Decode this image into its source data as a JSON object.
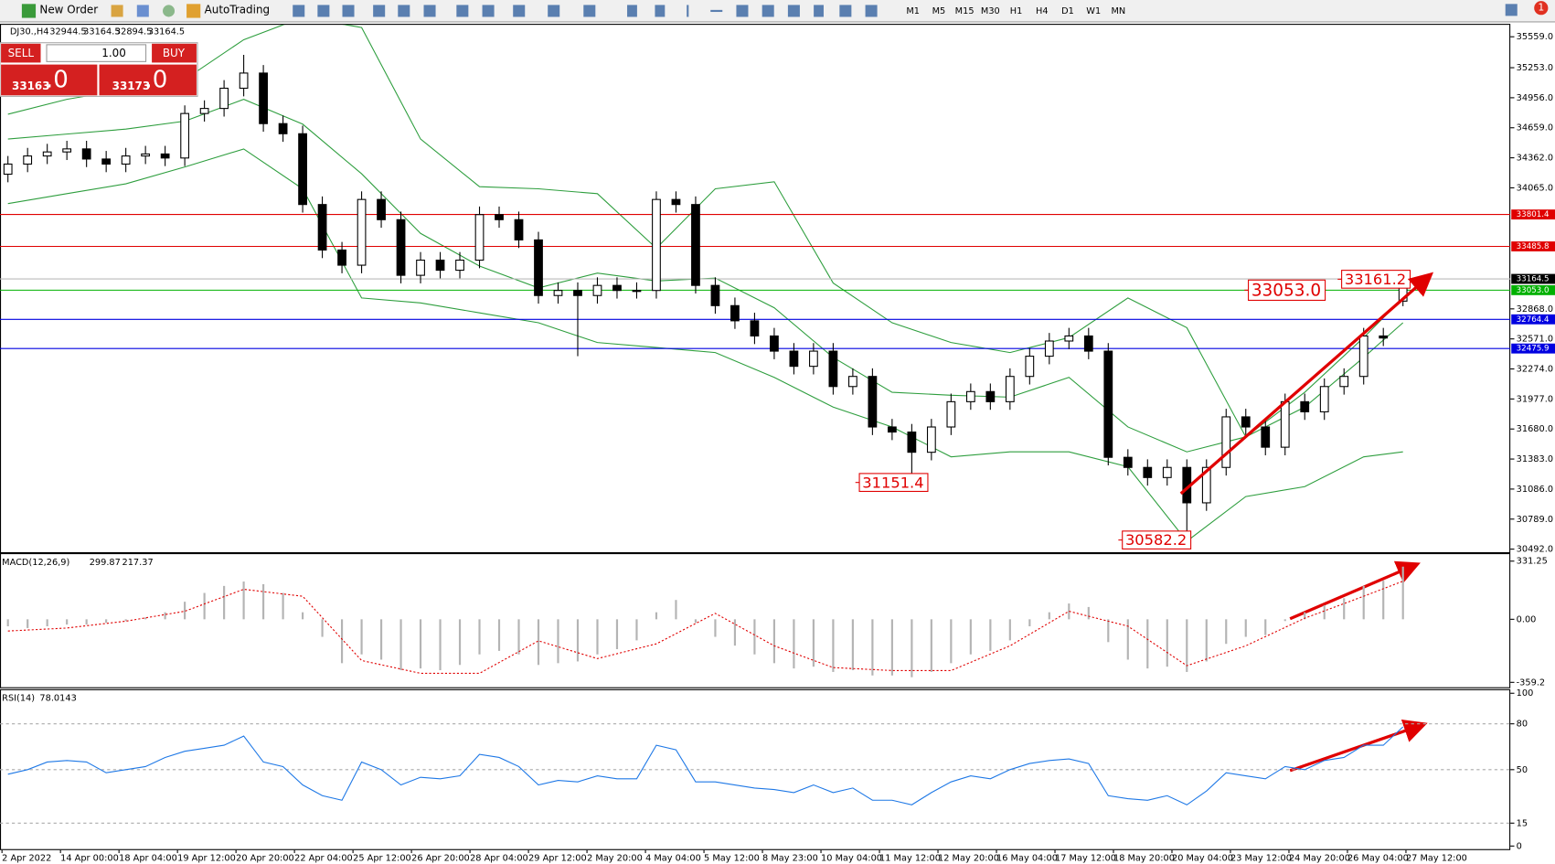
{
  "toolbar": {
    "new_order": "New Order",
    "autotrading": "AutoTrading",
    "timeframes": [
      "M1",
      "M5",
      "M15",
      "M30",
      "H1",
      "H4",
      "D1",
      "W1",
      "MN"
    ],
    "alerts": "1"
  },
  "trade_panel": {
    "sell": "SELL",
    "buy": "BUY",
    "lot": "1.00",
    "bid_main": "33163",
    "bid_pips": ".0",
    "ask_main": "33173",
    "ask_pips": ".0"
  },
  "chart_data": [
    {
      "type": "candlestick",
      "title": "DJ30.,H4",
      "open": [
        34200,
        34300,
        34380,
        34420,
        34450,
        34350,
        34300,
        34380,
        34400,
        34360,
        34800,
        34850,
        35050,
        35200,
        34700,
        34600,
        33900,
        33450,
        33300,
        33950,
        33750,
        33200,
        33350,
        33250,
        33350,
        33800,
        33750,
        33550,
        33000,
        33050,
        33000,
        33100,
        33050,
        33050,
        33950,
        33900,
        33100,
        32900,
        32750,
        32600,
        32450,
        32300,
        32450,
        32100,
        32200,
        31700,
        31650,
        31450,
        31700,
        31950,
        32050,
        31950,
        32200,
        32400,
        32550,
        32600,
        32450,
        31400,
        31300,
        31200,
        31300,
        30950,
        31300,
        31800,
        31700,
        31500,
        31950,
        31850,
        32100,
        32200,
        32600,
        32944.5
      ],
      "high": [
        34380,
        34460,
        34500,
        34530,
        34530,
        34430,
        34460,
        34480,
        34480,
        34880,
        34930,
        35130,
        35380,
        35280,
        34780,
        34680,
        33980,
        33530,
        34030,
        34030,
        33830,
        33430,
        33430,
        33430,
        33880,
        33880,
        33830,
        33630,
        33130,
        33130,
        33180,
        33180,
        33130,
        34030,
        34030,
        33980,
        33180,
        32980,
        32830,
        32680,
        32530,
        32530,
        32530,
        32280,
        32280,
        31780,
        31730,
        31780,
        32030,
        32130,
        32130,
        32280,
        32480,
        32630,
        32680,
        32680,
        32530,
        31480,
        31380,
        31380,
        31380,
        31380,
        31880,
        31880,
        31780,
        32030,
        32030,
        32180,
        32280,
        32680,
        32680,
        33164.5
      ],
      "low": [
        34120,
        34220,
        34300,
        34340,
        34270,
        34220,
        34220,
        34300,
        34280,
        34280,
        34720,
        34770,
        34970,
        34620,
        34520,
        33820,
        33370,
        33220,
        33220,
        33670,
        33120,
        33120,
        33170,
        33170,
        33270,
        33670,
        33470,
        32920,
        32920,
        32400,
        32920,
        32970,
        32970,
        32970,
        33820,
        33020,
        32820,
        32670,
        32520,
        32370,
        32220,
        32220,
        32020,
        32020,
        31620,
        31570,
        31151.4,
        31370,
        31620,
        31870,
        31870,
        31870,
        32120,
        32320,
        32470,
        32370,
        31320,
        31220,
        31120,
        31120,
        30582.2,
        30870,
        31220,
        31620,
        31420,
        31420,
        31770,
        31770,
        32020,
        32120,
        32500,
        32894.5
      ],
      "close": [
        34300,
        34380,
        34420,
        34450,
        34350,
        34300,
        34380,
        34400,
        34360,
        34800,
        34850,
        35050,
        35200,
        34700,
        34600,
        33900,
        33450,
        33300,
        33950,
        33750,
        33200,
        33350,
        33250,
        33350,
        33800,
        33750,
        33550,
        33000,
        33050,
        33000,
        33100,
        33050,
        33050,
        33950,
        33900,
        33100,
        32900,
        32750,
        32600,
        32450,
        32300,
        32450,
        32100,
        32200,
        31700,
        31650,
        31450,
        31700,
        31950,
        32050,
        31950,
        32200,
        32400,
        32550,
        32600,
        32450,
        31400,
        31300,
        31200,
        31300,
        30950,
        31300,
        31800,
        31700,
        31500,
        31950,
        31850,
        32100,
        32200,
        32600,
        32580,
        33164.5
      ],
      "bollinger": {
        "color": "#2e9e3e",
        "x": [
          0,
          3,
          6,
          9,
          12,
          15,
          18,
          21,
          24,
          27,
          30,
          33,
          36,
          39,
          42,
          45,
          48,
          51,
          54,
          57,
          60,
          63,
          66,
          69,
          71
        ],
        "upper": [
          34793,
          34940,
          35039,
          35137,
          35530,
          35750,
          35650,
          34548,
          34076,
          34056,
          34007,
          33467,
          34056,
          34125,
          33124,
          32731,
          32535,
          32436,
          32584,
          32976,
          32682,
          31602,
          32043,
          32584,
          32976
        ],
        "middle": [
          34548,
          34597,
          34646,
          34724,
          34940,
          34695,
          34204,
          33615,
          33291,
          33075,
          33222,
          33144,
          33173,
          32879,
          32388,
          32043,
          32014,
          31995,
          32191,
          31700,
          31454,
          31602,
          31897,
          32388,
          32731
        ],
        "lower": [
          33909,
          34007,
          34105,
          34272,
          34449,
          34056,
          32976,
          32927,
          32829,
          32731,
          32535,
          32486,
          32436,
          32191,
          31897,
          31700,
          31405,
          31454,
          31454,
          31307,
          30570,
          31012,
          31110,
          31405,
          31454
        ]
      },
      "ylim": [
        30462,
        35677
      ],
      "yticks": [
        {
          "value": 35559,
          "label": "35559.0"
        },
        {
          "value": 35253,
          "label": "35253.0"
        },
        {
          "value": 34956,
          "label": "34956.0"
        },
        {
          "value": 34659,
          "label": "34659.0"
        },
        {
          "value": 34362,
          "label": "34362.0"
        },
        {
          "value": 34065,
          "label": "34065.0"
        },
        {
          "value": 32868,
          "label": "32868.0"
        },
        {
          "value": 32571,
          "label": "32571.0"
        },
        {
          "value": 32274,
          "label": "32274.0"
        },
        {
          "value": 31977,
          "label": "31977.0"
        },
        {
          "value": 31680,
          "label": "31680.0"
        },
        {
          "value": 31383,
          "label": "31383.0"
        },
        {
          "value": 31086,
          "label": "31086.0"
        },
        {
          "value": 30789,
          "label": "30789.0"
        },
        {
          "value": 30492,
          "label": "30492.0"
        }
      ],
      "current_price": {
        "value": 33164.5,
        "label": "33164.5"
      },
      "levels": [
        {
          "value": 33801.4,
          "label": "33801.4",
          "color": "#e00000"
        },
        {
          "value": 33485.8,
          "label": "33485.8",
          "color": "#e00000"
        },
        {
          "value": 33053,
          "label": "33053.0",
          "color": "#00b000"
        },
        {
          "value": 32764.4,
          "label": "32764.4",
          "color": "#0000e0"
        },
        {
          "value": 32475.9,
          "label": "32475.9",
          "color": "#0000e0"
        }
      ],
      "annotations": [
        {
          "value": 33053,
          "label": "33053.0"
        },
        {
          "value": 33161.2,
          "label": "33161.2"
        },
        {
          "value": 31151.4,
          "label": "31151.4"
        },
        {
          "value": 30582.2,
          "label": "30582.2"
        }
      ],
      "x_labels": [
        "2 Apr 2022",
        "14 Apr 00:00",
        "18 Apr 04:00",
        "19 Apr 12:00",
        "20 Apr 20:00",
        "22 Apr 04:00",
        "25 Apr 12:00",
        "26 Apr 20:00",
        "28 Apr 04:00",
        "29 Apr 12:00",
        "2 May 20:00",
        "4 May 04:00",
        "5 May 12:00",
        "8 May 23:00",
        "10 May 04:00",
        "11 May 12:00",
        "12 May 20:00",
        "16 May 04:00",
        "17 May 12:00",
        "18 May 20:00",
        "20 May 04:00",
        "23 May 12:00",
        "24 May 20:00",
        "26 May 04:00",
        "27 May 12:00"
      ]
    },
    {
      "type": "macd",
      "title": "MACD(12,26,9)",
      "color": "#b4b4b4",
      "signal_color": "#e00000",
      "values": [
        -40,
        -50,
        -40,
        -30,
        -30,
        -20,
        -10,
        10,
        40,
        100,
        150,
        190,
        215,
        200,
        150,
        40,
        -100,
        -250,
        -200,
        -230,
        -290,
        -280,
        -290,
        -260,
        -200,
        -180,
        -200,
        -260,
        -250,
        -240,
        -200,
        -170,
        -120,
        40,
        110,
        -20,
        -100,
        -150,
        -200,
        -250,
        -280,
        -270,
        -300,
        -290,
        -320,
        -320,
        -330,
        -300,
        -250,
        -200,
        -180,
        -120,
        -40,
        40,
        90,
        70,
        -130,
        -230,
        -280,
        -270,
        -300,
        -240,
        -140,
        -100,
        -90,
        -10,
        40,
        80,
        120,
        190,
        220,
        299.87
      ],
      "signal_x": [
        0,
        3,
        6,
        9,
        12,
        15,
        18,
        21,
        24,
        27,
        30,
        33,
        36,
        39,
        42,
        45,
        48,
        51,
        54,
        57,
        60,
        63,
        66,
        69,
        71
      ],
      "signal": [
        -67,
        -50,
        -11,
        46,
        171,
        131,
        -235,
        -308,
        -308,
        -123,
        -224,
        -140,
        34,
        -151,
        -275,
        -292,
        -292,
        -151,
        46,
        -39,
        -264,
        -151,
        6,
        131,
        217.37
      ],
      "ylim": [
        -387,
        371
      ],
      "yticks": [
        331.25,
        {
          "value": 0,
          "label": "0.00"
        },
        -359.2
      ]
    },
    {
      "type": "rsi",
      "title": "RSI(14)",
      "color": "#1e78e6",
      "values": [
        47,
        50,
        55,
        56,
        55,
        48,
        50,
        52,
        58,
        62,
        64,
        66,
        72,
        55,
        52,
        40,
        33,
        30,
        55,
        50,
        40,
        45,
        44,
        46,
        60,
        58,
        52,
        40,
        43,
        42,
        46,
        44,
        44,
        66,
        63,
        42,
        42,
        40,
        38,
        37,
        35,
        40,
        35,
        38,
        30,
        30,
        27,
        35,
        42,
        46,
        44,
        50,
        54,
        56,
        57,
        54,
        33,
        31,
        30,
        33,
        27,
        36,
        48,
        46,
        44,
        52,
        50,
        56,
        58,
        66,
        66,
        78.0143
      ],
      "ylim": [
        -2,
        102
      ],
      "yticks": [
        100,
        80,
        50,
        15,
        0
      ],
      "levels": [
        80,
        50,
        15
      ]
    }
  ]
}
